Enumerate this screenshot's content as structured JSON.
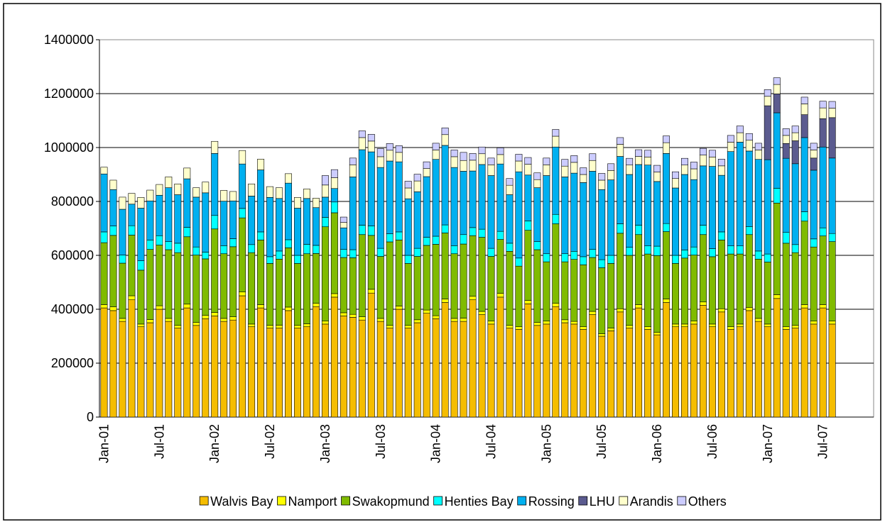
{
  "chart_data": {
    "type": "stacked-bar",
    "categories": [
      "Jan-01",
      null,
      null,
      null,
      null,
      null,
      "Jul-01",
      null,
      null,
      null,
      null,
      null,
      "Jan-02",
      null,
      null,
      null,
      null,
      null,
      "Jul-02",
      null,
      null,
      null,
      null,
      null,
      "Jan-03",
      null,
      null,
      null,
      null,
      null,
      "Jul-03",
      null,
      null,
      null,
      null,
      null,
      "Jan-04",
      null,
      null,
      null,
      null,
      null,
      "Jul-04",
      null,
      null,
      null,
      null,
      null,
      "Jan-05",
      null,
      null,
      null,
      null,
      null,
      "Jul-05",
      null,
      null,
      null,
      null,
      null,
      "Jan-06",
      null,
      null,
      null,
      null,
      null,
      "Jul-06",
      null,
      null,
      null,
      null,
      null,
      "Jan-07",
      null,
      null,
      null,
      null,
      null,
      "Jul-07",
      null,
      null,
      null,
      null,
      null
    ],
    "ylim": [
      0,
      1400000
    ],
    "yticks": [
      0,
      200000,
      400000,
      600000,
      800000,
      1000000,
      1200000,
      1400000
    ],
    "grid": true,
    "legend": "bottom",
    "series": [
      {
        "name": "Walvis Bay",
        "color": "#f5bd00",
        "values": [
          405000,
          395000,
          355000,
          435000,
          335000,
          350000,
          400000,
          355000,
          330000,
          405000,
          340000,
          365000,
          375000,
          355000,
          360000,
          450000,
          335000,
          405000,
          330000,
          330000,
          395000,
          330000,
          335000,
          410000,
          345000,
          445000,
          375000,
          370000,
          360000,
          460000,
          355000,
          330000,
          400000,
          330000,
          350000,
          385000,
          365000,
          425000,
          355000,
          355000,
          435000,
          380000,
          345000,
          445000,
          330000,
          325000,
          420000,
          340000,
          345000,
          410000,
          350000,
          345000,
          325000,
          380000,
          300000,
          320000,
          390000,
          330000,
          405000,
          325000,
          305000,
          425000,
          335000,
          335000,
          345000,
          415000,
          335000,
          390000,
          325000,
          335000,
          395000,
          355000,
          335000,
          440000,
          325000,
          330000,
          405000,
          345000,
          405000,
          345000,
          null,
          null,
          null,
          null
        ]
      },
      {
        "name": "Namport",
        "color": "#ffff00",
        "values": [
          12000,
          14000,
          11000,
          15000,
          10000,
          12000,
          13000,
          11000,
          10000,
          14000,
          11000,
          12000,
          13000,
          11000,
          12000,
          14000,
          10000,
          12000,
          10000,
          11000,
          13000,
          10000,
          11000,
          12000,
          11000,
          13000,
          12000,
          11000,
          12000,
          14000,
          11000,
          10000,
          12000,
          10000,
          11000,
          12000,
          11000,
          13000,
          11000,
          12000,
          13000,
          12000,
          11000,
          14000,
          10000,
          10000,
          13000,
          11000,
          11000,
          12000,
          11000,
          10000,
          10000,
          12000,
          9000,
          10000,
          12000,
          10000,
          12000,
          10000,
          9000,
          13000,
          10000,
          10000,
          11000,
          12000,
          10000,
          12000,
          10000,
          10000,
          12000,
          11000,
          10000,
          14000,
          10000,
          10000,
          12000,
          11000,
          12000,
          11000,
          null,
          null,
          null,
          null
        ]
      },
      {
        "name": "Swakopmund",
        "color": "#80bb00",
        "values": [
          230000,
          265000,
          205000,
          225000,
          200000,
          260000,
          225000,
          255000,
          270000,
          250000,
          250000,
          210000,
          310000,
          240000,
          260000,
          275000,
          265000,
          240000,
          230000,
          245000,
          220000,
          230000,
          260000,
          185000,
          350000,
          300000,
          205000,
          210000,
          305000,
          200000,
          230000,
          310000,
          245000,
          230000,
          235000,
          240000,
          265000,
          245000,
          240000,
          275000,
          225000,
          275000,
          240000,
          200000,
          275000,
          225000,
          260000,
          270000,
          220000,
          295000,
          215000,
          230000,
          230000,
          200000,
          245000,
          240000,
          280000,
          260000,
          260000,
          270000,
          285000,
          250000,
          225000,
          245000,
          245000,
          250000,
          250000,
          255000,
          270000,
          260000,
          270000,
          220000,
          230000,
          340000,
          310000,
          270000,
          310000,
          275000,
          255000,
          295000,
          null,
          null,
          null,
          null
        ]
      },
      {
        "name": "Henties Bay",
        "color": "#00ffff",
        "values": [
          40000,
          35000,
          30000,
          35000,
          35000,
          35000,
          35000,
          30000,
          35000,
          35000,
          30000,
          25000,
          50000,
          30000,
          30000,
          35000,
          30000,
          30000,
          25000,
          30000,
          30000,
          30000,
          35000,
          30000,
          35000,
          40000,
          30000,
          30000,
          35000,
          35000,
          30000,
          30000,
          30000,
          30000,
          30000,
          30000,
          30000,
          30000,
          30000,
          35000,
          30000,
          30000,
          30000,
          30000,
          30000,
          30000,
          35000,
          30000,
          30000,
          35000,
          30000,
          30000,
          30000,
          30000,
          30000,
          30000,
          35000,
          30000,
          35000,
          30000,
          35000,
          30000,
          30000,
          30000,
          30000,
          35000,
          30000,
          30000,
          30000,
          30000,
          30000,
          30000,
          30000,
          55000,
          40000,
          30000,
          35000,
          30000,
          30000,
          30000,
          null,
          null,
          null,
          null
        ]
      },
      {
        "name": "Rossing",
        "color": "#00b0f0",
        "values": [
          215000,
          135000,
          170000,
          80000,
          195000,
          145000,
          150000,
          200000,
          180000,
          180000,
          185000,
          220000,
          230000,
          165000,
          140000,
          165000,
          180000,
          230000,
          220000,
          195000,
          210000,
          175000,
          170000,
          140000,
          75000,
          50000,
          80000,
          270000,
          280000,
          275000,
          300000,
          270000,
          260000,
          210000,
          210000,
          225000,
          285000,
          295000,
          290000,
          235000,
          210000,
          240000,
          270000,
          250000,
          180000,
          320000,
          170000,
          200000,
          290000,
          250000,
          285000,
          290000,
          275000,
          290000,
          260000,
          280000,
          250000,
          270000,
          225000,
          300000,
          240000,
          260000,
          250000,
          280000,
          250000,
          220000,
          305000,
          210000,
          350000,
          385000,
          280000,
          340000,
          350000,
          280000,
          275000,
          300000,
          275000,
          255000,
          300000,
          280000,
          null,
          null,
          null,
          null
        ]
      },
      {
        "name": "LHU",
        "color": "#5b5b8f",
        "values": [
          0,
          0,
          0,
          0,
          0,
          0,
          0,
          0,
          0,
          0,
          0,
          0,
          0,
          0,
          0,
          0,
          0,
          0,
          0,
          0,
          0,
          0,
          0,
          0,
          0,
          0,
          0,
          0,
          0,
          0,
          0,
          0,
          0,
          0,
          0,
          0,
          0,
          0,
          0,
          0,
          0,
          0,
          0,
          0,
          0,
          0,
          0,
          0,
          0,
          0,
          0,
          0,
          0,
          0,
          0,
          0,
          0,
          0,
          0,
          0,
          0,
          0,
          0,
          0,
          0,
          0,
          0,
          0,
          0,
          0,
          0,
          0,
          200000,
          70000,
          55000,
          85000,
          85000,
          45000,
          105000,
          150000,
          null,
          null,
          null,
          null
        ]
      },
      {
        "name": "Arandis",
        "color": "#ffffcc",
        "values": [
          25000,
          35000,
          45000,
          40000,
          40000,
          40000,
          40000,
          40000,
          40000,
          40000,
          35000,
          40000,
          45000,
          40000,
          35000,
          50000,
          45000,
          40000,
          40000,
          40000,
          35000,
          40000,
          35000,
          35000,
          45000,
          40000,
          20000,
          45000,
          45000,
          40000,
          40000,
          40000,
          35000,
          40000,
          40000,
          30000,
          35000,
          40000,
          40000,
          40000,
          40000,
          40000,
          40000,
          35000,
          35000,
          40000,
          40000,
          30000,
          40000,
          40000,
          40000,
          40000,
          30000,
          40000,
          35000,
          35000,
          45000,
          35000,
          30000,
          30000,
          35000,
          40000,
          35000,
          35000,
          40000,
          40000,
          35000,
          35000,
          35000,
          35000,
          40000,
          35000,
          35000,
          35000,
          30000,
          30000,
          40000,
          30000,
          40000,
          35000,
          null,
          null,
          null,
          null
        ]
      },
      {
        "name": "Others",
        "color": "#ccccff",
        "values": [
          0,
          0,
          0,
          0,
          0,
          0,
          0,
          0,
          0,
          0,
          0,
          0,
          0,
          0,
          0,
          0,
          0,
          0,
          0,
          0,
          0,
          0,
          0,
          0,
          35000,
          30000,
          20000,
          25000,
          25000,
          25000,
          30000,
          25000,
          25000,
          25000,
          25000,
          25000,
          25000,
          25000,
          25000,
          30000,
          25000,
          25000,
          25000,
          25000,
          25000,
          25000,
          25000,
          25000,
          25000,
          25000,
          25000,
          25000,
          25000,
          25000,
          25000,
          25000,
          25000,
          25000,
          25000,
          25000,
          25000,
          25000,
          25000,
          25000,
          25000,
          25000,
          25000,
          25000,
          25000,
          25000,
          25000,
          25000,
          25000,
          25000,
          25000,
          25000,
          25000,
          25000,
          25000,
          25000,
          null,
          null,
          null,
          null
        ]
      }
    ]
  }
}
